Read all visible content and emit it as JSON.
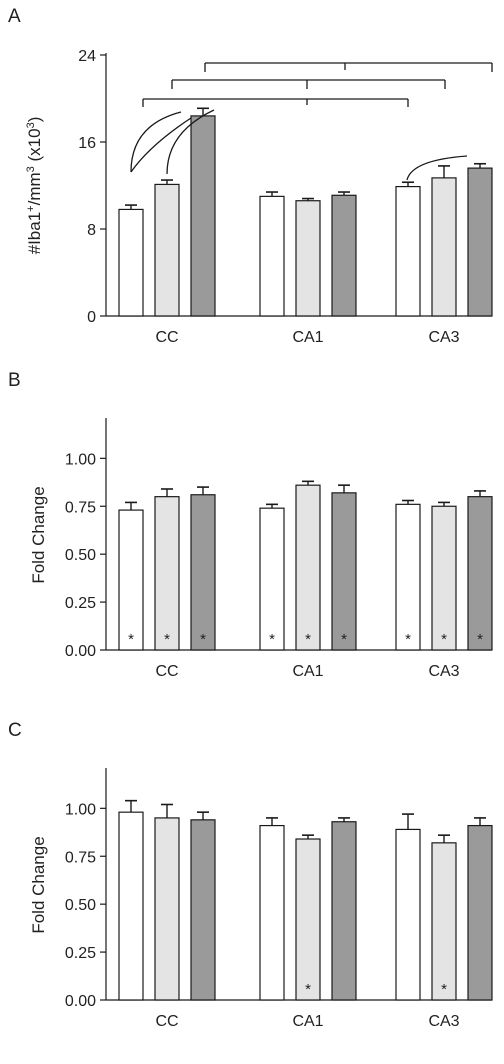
{
  "colors": {
    "white_bar": "#ffffff",
    "light_bar": "#e4e4e4",
    "dark_bar": "#9a9a9a",
    "stroke": "#1a1a1a"
  },
  "chart_data": [
    {
      "panel": "A",
      "type": "bar",
      "categories": [
        "CC",
        "CA1",
        "CA3"
      ],
      "series": [
        {
          "values": [
            9.8,
            11.0,
            11.9
          ],
          "errors": [
            0.4,
            0.4,
            0.4
          ]
        },
        {
          "values": [
            12.1,
            10.6,
            12.7
          ],
          "errors": [
            0.4,
            0.2,
            1.1
          ]
        },
        {
          "values": [
            18.4,
            11.1,
            13.6
          ],
          "errors": [
            0.7,
            0.3,
            0.4
          ]
        }
      ],
      "ylabel": "#Iba1+/mm3 (x103)",
      "ylim": [
        0,
        24
      ],
      "yticks": [
        "0",
        "8",
        "16",
        "24"
      ],
      "brackets": "significance comparison brackets between regions and between bars"
    },
    {
      "panel": "B",
      "type": "bar",
      "categories": [
        "CC",
        "CA1",
        "CA3"
      ],
      "series": [
        {
          "values": [
            0.73,
            0.74,
            0.76
          ],
          "errors": [
            0.04,
            0.02,
            0.02
          ]
        },
        {
          "values": [
            0.8,
            0.86,
            0.75
          ],
          "errors": [
            0.04,
            0.02,
            0.02
          ]
        },
        {
          "values": [
            0.81,
            0.82,
            0.8
          ],
          "errors": [
            0.04,
            0.04,
            0.03
          ]
        }
      ],
      "ylabel": "Fold Change",
      "ylim": [
        0,
        1.2
      ],
      "yticks": [
        "0.00",
        "0.25",
        "0.50",
        "0.75",
        "1.00"
      ],
      "stars": [
        [
          true,
          true,
          true
        ],
        [
          true,
          true,
          true
        ],
        [
          true,
          true,
          true
        ]
      ],
      "star_symbol": "*"
    },
    {
      "panel": "C",
      "type": "bar",
      "categories": [
        "CC",
        "CA1",
        "CA3"
      ],
      "series": [
        {
          "values": [
            0.98,
            0.91,
            0.89
          ],
          "errors": [
            0.06,
            0.04,
            0.08
          ]
        },
        {
          "values": [
            0.95,
            0.84,
            0.82
          ],
          "errors": [
            0.07,
            0.02,
            0.04
          ]
        },
        {
          "values": [
            0.94,
            0.93,
            0.91
          ],
          "errors": [
            0.04,
            0.02,
            0.04
          ]
        }
      ],
      "ylabel": "Fold Change",
      "ylim": [
        0,
        1.2
      ],
      "yticks": [
        "0.00",
        "0.25",
        "0.50",
        "0.75",
        "1.00"
      ],
      "stars": [
        [
          false,
          false,
          false
        ],
        [
          false,
          true,
          false
        ],
        [
          false,
          true,
          false
        ]
      ],
      "star_symbol": "*"
    }
  ]
}
